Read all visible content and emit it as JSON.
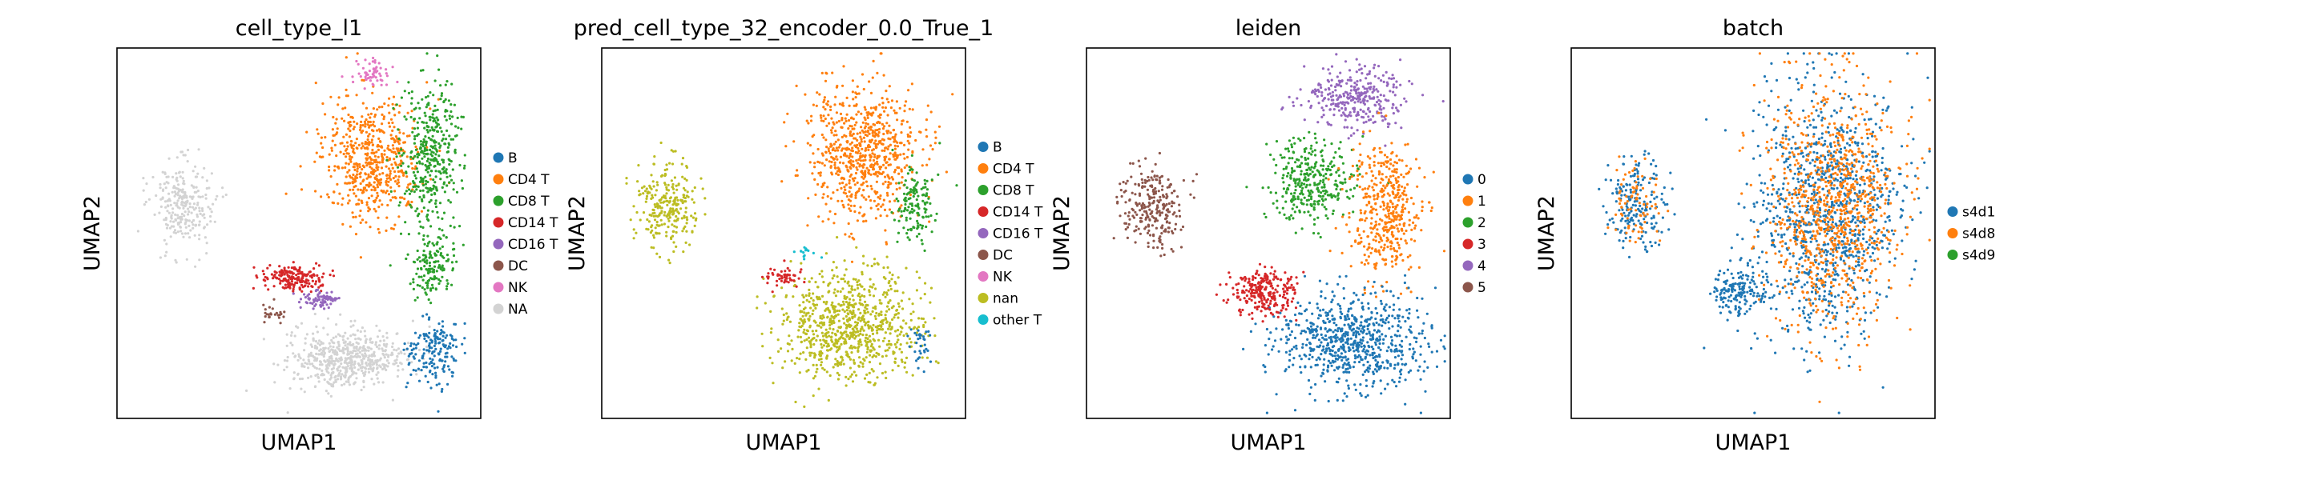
{
  "figure": {
    "background": "#ffffff"
  },
  "chart_data": [
    {
      "type": "scatter",
      "title": "cell_type_l1",
      "xlabel": "UMAP1",
      "ylabel": "UMAP2",
      "grid": false,
      "legend_placement": "right",
      "legend": [
        {
          "label": "B",
          "color": "#1f77b4"
        },
        {
          "label": "CD4 T",
          "color": "#ff7f0e"
        },
        {
          "label": "CD8 T",
          "color": "#2ca02c"
        },
        {
          "label": "CD14 T",
          "color": "#d62728"
        },
        {
          "label": "CD16 T",
          "color": "#9467bd"
        },
        {
          "label": "DC",
          "color": "#8c564b"
        },
        {
          "label": "NK",
          "color": "#e377c2"
        },
        {
          "label": "NA",
          "color": "#d3d3d3"
        }
      ],
      "regions": [
        {
          "c": "#ff7f0e",
          "cx": 0.7,
          "cy": 0.3,
          "rx": 0.15,
          "ry": 0.18,
          "n": 560
        },
        {
          "c": "#2ca02c",
          "cx": 0.86,
          "cy": 0.28,
          "rx": 0.09,
          "ry": 0.22,
          "n": 380
        },
        {
          "c": "#e377c2",
          "cx": 0.7,
          "cy": 0.07,
          "rx": 0.06,
          "ry": 0.04,
          "n": 60
        },
        {
          "c": "#2ca02c",
          "cx": 0.87,
          "cy": 0.58,
          "rx": 0.07,
          "ry": 0.1,
          "n": 160
        },
        {
          "c": "#d3d3d3",
          "cx": 0.18,
          "cy": 0.42,
          "rx": 0.09,
          "ry": 0.13,
          "n": 260
        },
        {
          "c": "#d62728",
          "cx": 0.48,
          "cy": 0.62,
          "rx": 0.09,
          "ry": 0.04,
          "n": 190
        },
        {
          "c": "#9467bd",
          "cx": 0.56,
          "cy": 0.68,
          "rx": 0.05,
          "ry": 0.025,
          "n": 80
        },
        {
          "c": "#d3d3d3",
          "cx": 0.63,
          "cy": 0.84,
          "rx": 0.18,
          "ry": 0.09,
          "n": 560
        },
        {
          "c": "#1f77b4",
          "cx": 0.87,
          "cy": 0.82,
          "rx": 0.08,
          "ry": 0.1,
          "n": 180
        },
        {
          "c": "#8c564b",
          "cx": 0.43,
          "cy": 0.72,
          "rx": 0.04,
          "ry": 0.03,
          "n": 25
        }
      ]
    },
    {
      "type": "scatter",
      "title": "pred_cell_type_32_encoder_0.0_True_1",
      "xlabel": "UMAP1",
      "ylabel": "UMAP2",
      "grid": false,
      "legend_placement": "right",
      "legend": [
        {
          "label": "B",
          "color": "#1f77b4"
        },
        {
          "label": "CD4 T",
          "color": "#ff7f0e"
        },
        {
          "label": "CD8 T",
          "color": "#2ca02c"
        },
        {
          "label": "CD14 T",
          "color": "#d62728"
        },
        {
          "label": "CD16 T",
          "color": "#9467bd"
        },
        {
          "label": "DC",
          "color": "#8c564b"
        },
        {
          "label": "NK",
          "color": "#e377c2"
        },
        {
          "label": "nan",
          "color": "#bcbd22"
        },
        {
          "label": "other T",
          "color": "#17becf"
        }
      ],
      "regions": [
        {
          "c": "#ff7f0e",
          "cx": 0.72,
          "cy": 0.28,
          "rx": 0.17,
          "ry": 0.2,
          "n": 720
        },
        {
          "c": "#2ca02c",
          "cx": 0.86,
          "cy": 0.42,
          "rx": 0.06,
          "ry": 0.12,
          "n": 140
        },
        {
          "c": "#bcbd22",
          "cx": 0.18,
          "cy": 0.42,
          "rx": 0.09,
          "ry": 0.13,
          "n": 260
        },
        {
          "c": "#bcbd22",
          "cx": 0.68,
          "cy": 0.75,
          "rx": 0.22,
          "ry": 0.16,
          "n": 820
        },
        {
          "c": "#d62728",
          "cx": 0.5,
          "cy": 0.62,
          "rx": 0.06,
          "ry": 0.03,
          "n": 50
        },
        {
          "c": "#1f77b4",
          "cx": 0.88,
          "cy": 0.8,
          "rx": 0.04,
          "ry": 0.06,
          "n": 35
        },
        {
          "c": "#17becf",
          "cx": 0.56,
          "cy": 0.55,
          "rx": 0.04,
          "ry": 0.02,
          "n": 15
        }
      ]
    },
    {
      "type": "scatter",
      "title": "leiden",
      "xlabel": "UMAP1",
      "ylabel": "UMAP2",
      "grid": false,
      "legend_placement": "right",
      "legend": [
        {
          "label": "0",
          "color": "#1f77b4"
        },
        {
          "label": "1",
          "color": "#ff7f0e"
        },
        {
          "label": "2",
          "color": "#2ca02c"
        },
        {
          "label": "3",
          "color": "#d62728"
        },
        {
          "label": "4",
          "color": "#9467bd"
        },
        {
          "label": "5",
          "color": "#8c564b"
        }
      ],
      "regions": [
        {
          "c": "#9467bd",
          "cx": 0.74,
          "cy": 0.13,
          "rx": 0.15,
          "ry": 0.09,
          "n": 320
        },
        {
          "c": "#2ca02c",
          "cx": 0.62,
          "cy": 0.36,
          "rx": 0.13,
          "ry": 0.13,
          "n": 330
        },
        {
          "c": "#ff7f0e",
          "cx": 0.82,
          "cy": 0.44,
          "rx": 0.11,
          "ry": 0.2,
          "n": 430
        },
        {
          "c": "#1f77b4",
          "cx": 0.73,
          "cy": 0.79,
          "rx": 0.22,
          "ry": 0.14,
          "n": 720
        },
        {
          "c": "#d62728",
          "cx": 0.49,
          "cy": 0.66,
          "rx": 0.1,
          "ry": 0.07,
          "n": 260
        },
        {
          "c": "#8c564b",
          "cx": 0.18,
          "cy": 0.42,
          "rx": 0.09,
          "ry": 0.13,
          "n": 260
        }
      ]
    },
    {
      "type": "scatter",
      "title": "batch",
      "xlabel": "UMAP1",
      "ylabel": "UMAP2",
      "grid": false,
      "legend_placement": "right",
      "legend": [
        {
          "label": "s4d1",
          "color": "#1f77b4"
        },
        {
          "label": "s4d8",
          "color": "#ff7f0e"
        },
        {
          "label": "s4d9",
          "color": "#2ca02c"
        }
      ],
      "regions": [
        {
          "c": "#1f77b4",
          "cx": 0.7,
          "cy": 0.45,
          "rx": 0.22,
          "ry": 0.38,
          "n": 1000
        },
        {
          "c": "#ff7f0e",
          "cx": 0.72,
          "cy": 0.42,
          "rx": 0.2,
          "ry": 0.36,
          "n": 900
        },
        {
          "c": "#1f77b4",
          "cx": 0.18,
          "cy": 0.42,
          "rx": 0.09,
          "ry": 0.13,
          "n": 190
        },
        {
          "c": "#ff7f0e",
          "cx": 0.18,
          "cy": 0.42,
          "rx": 0.08,
          "ry": 0.12,
          "n": 80
        },
        {
          "c": "#1f77b4",
          "cx": 0.46,
          "cy": 0.66,
          "rx": 0.08,
          "ry": 0.07,
          "n": 160
        }
      ]
    }
  ]
}
